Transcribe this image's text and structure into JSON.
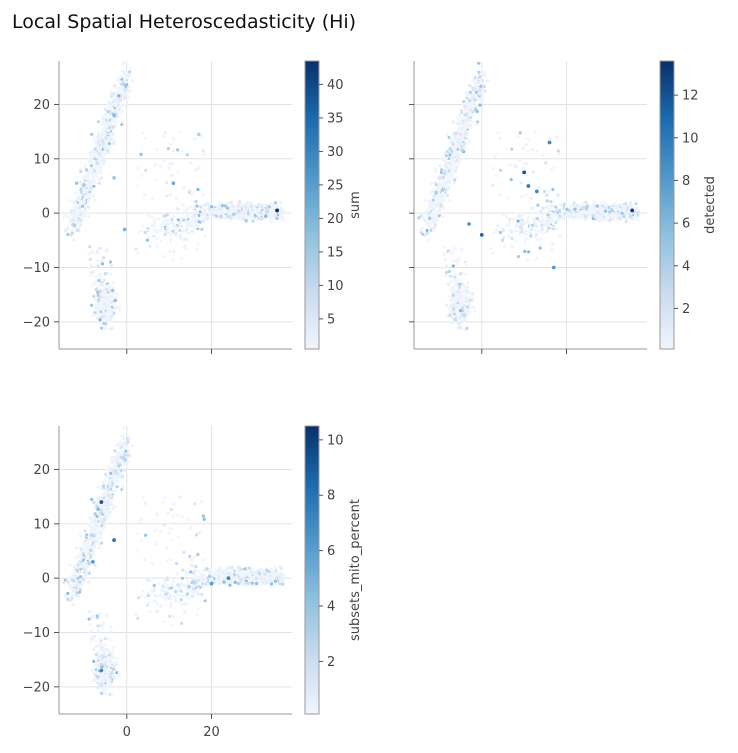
{
  "figure": {
    "title": "Local Spatial Heteroscedasticity (Hi)"
  },
  "chart_data": [
    {
      "type": "scatter",
      "panel": "top-left",
      "colorbar_label": "sum",
      "xlim": [
        -16,
        39
      ],
      "ylim": [
        -25,
        28
      ],
      "xticks": [
        0,
        20
      ],
      "xtick_labels_shown": false,
      "yticks": [
        -20,
        -10,
        0,
        10,
        20
      ],
      "ytick_labels_shown": true,
      "color_range": [
        0.5,
        43.5
      ],
      "colorbar_ticks": [
        5,
        10,
        15,
        20,
        25,
        30,
        35,
        40
      ],
      "colormap": [
        "#f1f5fc",
        "#c8dbef",
        "#8ec0de",
        "#4f97ca",
        "#1c6aae",
        "#08306b"
      ],
      "grid": true,
      "hotspots": [
        {
          "x": 35.5,
          "y": 0.5,
          "value": 43
        },
        {
          "x": 11,
          "y": 5.5,
          "value": 22
        },
        {
          "x": -0.5,
          "y": -3,
          "value": 20
        },
        {
          "x": -3,
          "y": 6.5,
          "value": 15
        },
        {
          "x": 17,
          "y": 14.5,
          "value": 12
        }
      ]
    },
    {
      "type": "scatter",
      "panel": "top-right",
      "colorbar_label": "detected",
      "xlim": [
        -16,
        39
      ],
      "ylim": [
        -25,
        28
      ],
      "xticks": [
        0,
        20
      ],
      "xtick_labels_shown": false,
      "yticks": [
        -20,
        -10,
        0,
        10,
        20
      ],
      "ytick_labels_shown": false,
      "color_range": [
        0.1,
        13.6
      ],
      "colorbar_ticks": [
        2,
        4,
        6,
        8,
        10,
        12
      ],
      "colormap": [
        "#f1f5fc",
        "#c8dbef",
        "#8ec0de",
        "#4f97ca",
        "#1c6aae",
        "#08306b"
      ],
      "grid": true,
      "hotspots": [
        {
          "x": 35.5,
          "y": 0.5,
          "value": 13
        },
        {
          "x": 10,
          "y": 7.5,
          "value": 12
        },
        {
          "x": 0,
          "y": -4,
          "value": 11
        },
        {
          "x": 11,
          "y": 5,
          "value": 10
        },
        {
          "x": 16,
          "y": 13,
          "value": 9
        },
        {
          "x": 13,
          "y": 4,
          "value": 9
        },
        {
          "x": -3,
          "y": -2,
          "value": 8
        },
        {
          "x": 17,
          "y": -10,
          "value": 8
        }
      ]
    },
    {
      "type": "scatter",
      "panel": "bottom-left",
      "colorbar_label": "subsets_mito_percent",
      "xlim": [
        -16,
        39
      ],
      "ylim": [
        -25,
        28
      ],
      "xticks": [
        0,
        20
      ],
      "xtick_labels": [
        "0",
        "20"
      ],
      "xtick_labels_shown": true,
      "yticks": [
        -20,
        -10,
        0,
        10,
        20
      ],
      "ytick_labels_shown": true,
      "color_range": [
        0.1,
        10.5
      ],
      "colorbar_ticks": [
        2,
        4,
        6,
        8,
        10
      ],
      "colormap": [
        "#f1f5fc",
        "#c8dbef",
        "#8ec0de",
        "#4f97ca",
        "#1c6aae",
        "#08306b"
      ],
      "grid": true,
      "hotspots": [
        {
          "x": -6,
          "y": 14,
          "value": 9
        },
        {
          "x": -3,
          "y": 7,
          "value": 8
        },
        {
          "x": 24,
          "y": 0,
          "value": 7
        },
        {
          "x": 20,
          "y": -1,
          "value": 6
        },
        {
          "x": -8,
          "y": 3,
          "value": 6
        },
        {
          "x": -6,
          "y": -17,
          "value": 7
        }
      ]
    }
  ]
}
